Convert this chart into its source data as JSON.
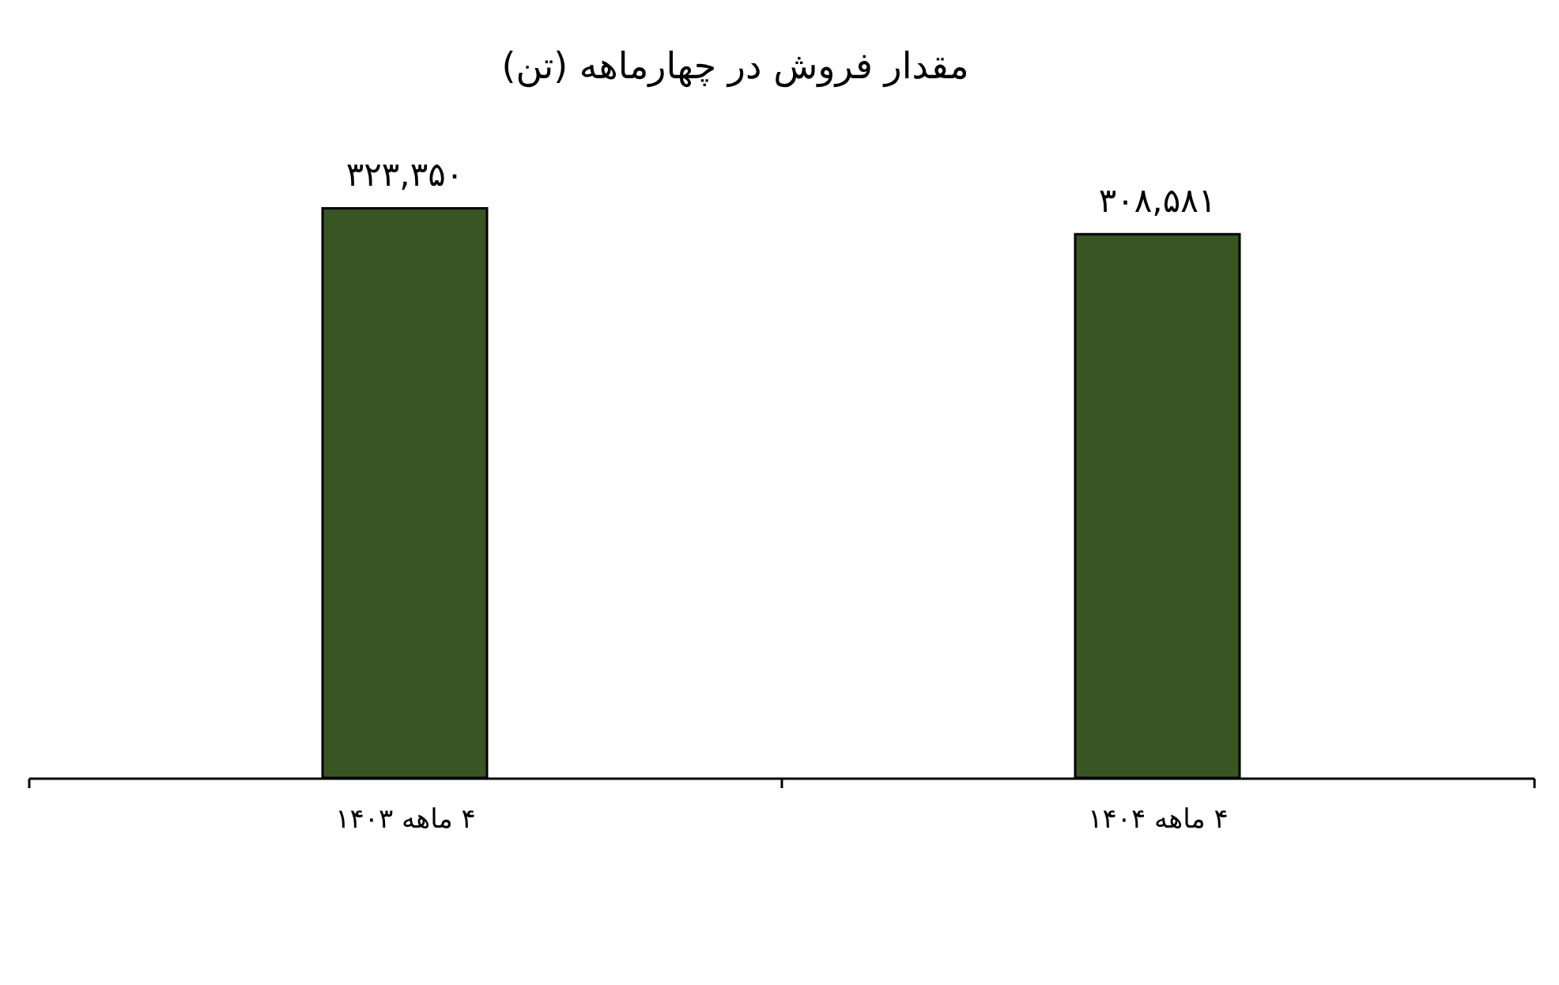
{
  "chart_data": {
    "type": "bar",
    "title": "مقدار فروش در چهارماهه (تن)",
    "categories": [
      "۴ ماهه ۱۴۰۳",
      "۴ ماهه ۱۴۰۴"
    ],
    "values": [
      323350,
      308581
    ],
    "value_labels": [
      "۳۲۳,۳۵۰",
      "۳۰۸,۵۸۱"
    ],
    "color": "#375623"
  }
}
